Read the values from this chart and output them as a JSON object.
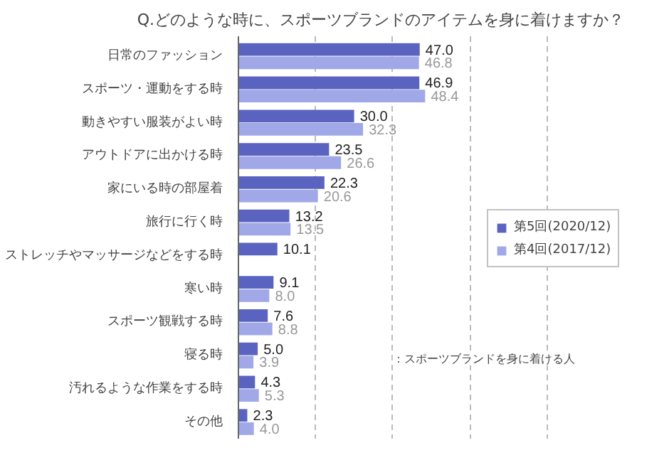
{
  "chart_data": {
    "type": "bar",
    "orientation": "horizontal",
    "title": "Q.どのような時に、スポーツブランドのアイテムを身に着けますか？",
    "categories": [
      "日常のファッション",
      "スポーツ・運動をする時",
      "動きやすい服装がよい時",
      "アウトドアに出かける時",
      "家にいる時の部屋着",
      "旅行に行く時",
      "ストレッチやマッサージなどをする時",
      "寒い時",
      "スポーツ観戦する時",
      "寝る時",
      "汚れるような作業をする時",
      "その他"
    ],
    "series": [
      {
        "name": "第5回(2020/12)",
        "color": "#5a64c0",
        "values": [
          47.0,
          46.9,
          30.0,
          23.5,
          22.3,
          13.2,
          10.1,
          9.1,
          7.6,
          5.0,
          4.3,
          2.3
        ],
        "value_labels": [
          "47.0",
          "46.9",
          "30.0",
          "23.5",
          "22.3",
          "13.2",
          "10.1",
          "9.1",
          "7.6",
          "5.0",
          "4.3",
          "2.3"
        ]
      },
      {
        "name": "第4回(2017/12)",
        "color": "#a0a8e8",
        "values": [
          46.8,
          48.4,
          32.3,
          26.6,
          20.6,
          13.5,
          null,
          8.0,
          8.8,
          3.9,
          5.3,
          4.0
        ],
        "value_labels": [
          "46.8",
          "48.4",
          "32.3",
          "26.6",
          "20.6",
          "13.5",
          null,
          "8.0",
          "8.8",
          "3.9",
          "5.3",
          "4.0"
        ]
      }
    ],
    "xlim": [
      0,
      100
    ],
    "xticks": [
      {
        "value": 20,
        "label": null
      },
      {
        "value": 40,
        "label": null
      },
      {
        "value": 60,
        "label": null
      },
      {
        "value": 80,
        "label": null
      }
    ],
    "tick_labels": "y",
    "grid": "x",
    "legend": "right",
    "annotations": [
      "：スポーツブランドを身に着ける人"
    ]
  }
}
